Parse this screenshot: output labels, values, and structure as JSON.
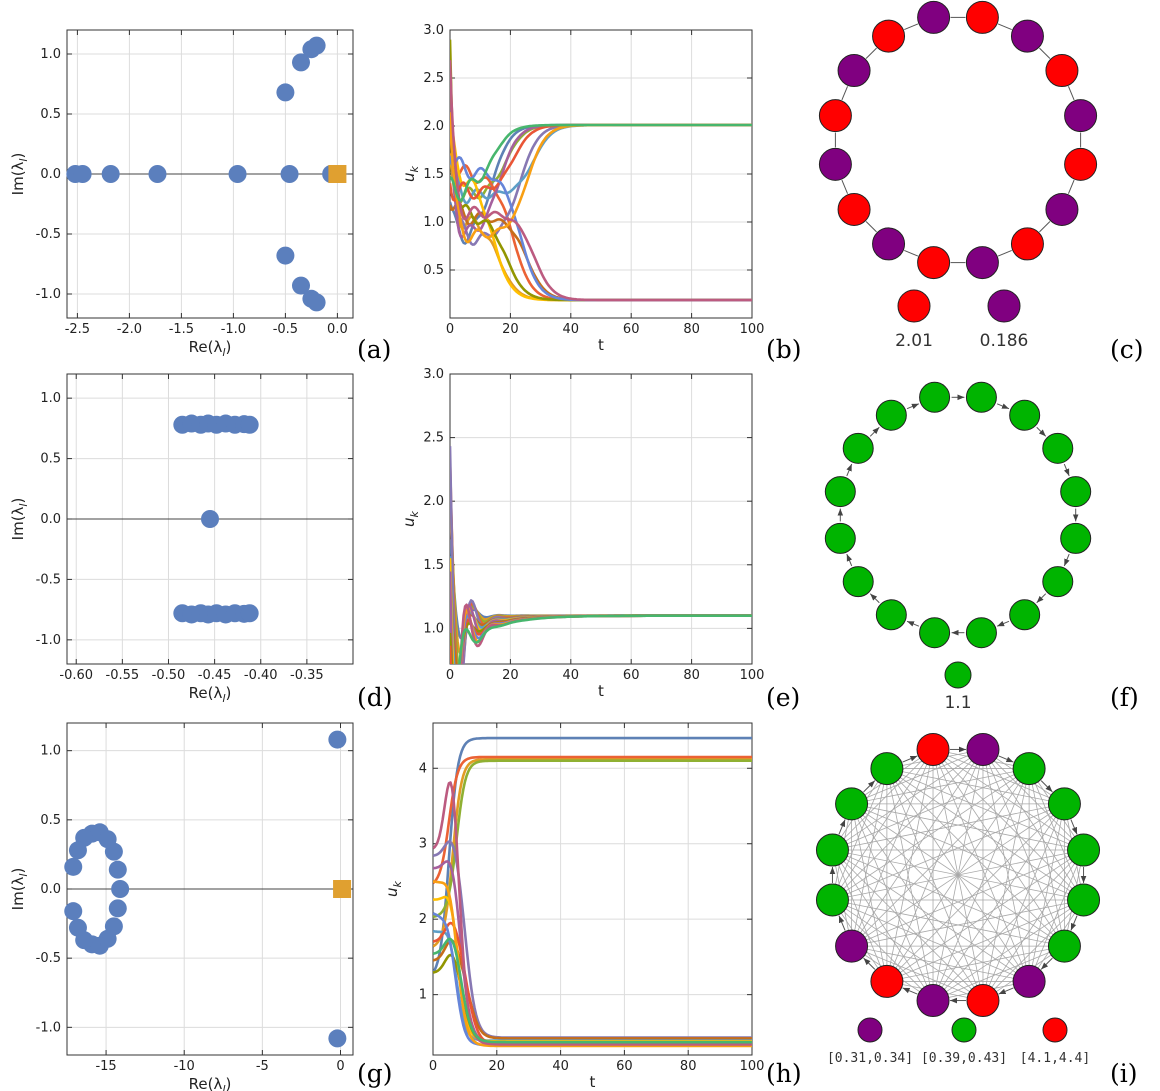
{
  "panel_letters": [
    "(a)",
    "(b)",
    "(c)",
    "(d)",
    "(e)",
    "(f)",
    "(g)",
    "(h)",
    "(i)"
  ],
  "colors": {
    "eig": "#5b7fbd",
    "eig_orange": "#e0a030",
    "red": "#ff0000",
    "purple": "#800080",
    "green": "#00b400",
    "series": [
      "#5e81b5",
      "#e19c24",
      "#8fb032",
      "#eb6235",
      "#8778b3",
      "#c56e1a",
      "#5d9ec7",
      "#ffbf00",
      "#a5609d",
      "#929600",
      "#e95536",
      "#6685d9",
      "#f89f13",
      "#bc5b80",
      "#47b66d"
    ]
  },
  "chart_data": [
    {
      "id": "a",
      "type": "scatter",
      "xlabel": "Re(λl)",
      "ylabel": "Im(λl)",
      "xlim": [
        -2.6,
        0.15
      ],
      "ylim": [
        -1.2,
        1.2
      ],
      "xticks": [
        "-2.5",
        "-2.0",
        "-1.5",
        "-1.0",
        "-0.5",
        "0.0"
      ],
      "yticks": [
        "-1.0",
        "-0.5",
        "0.0",
        "0.5",
        "1.0"
      ],
      "points": [
        [
          -2.52,
          0
        ],
        [
          -2.45,
          0
        ],
        [
          -2.18,
          0
        ],
        [
          -1.73,
          0
        ],
        [
          -0.96,
          0
        ],
        [
          -0.46,
          0
        ],
        [
          -0.06,
          0
        ],
        [
          -0.5,
          0.68
        ],
        [
          -0.35,
          0.93
        ],
        [
          -0.25,
          1.04
        ],
        [
          -0.2,
          1.07
        ],
        [
          -0.5,
          -0.68
        ],
        [
          -0.35,
          -0.93
        ],
        [
          -0.25,
          -1.04
        ],
        [
          -0.2,
          -1.07
        ]
      ],
      "square_points": [
        [
          0.0,
          0
        ]
      ]
    },
    {
      "id": "b",
      "type": "line",
      "xlabel": "t",
      "ylabel": "uk",
      "xlim": [
        0,
        100
      ],
      "ylim": [
        0,
        3.0
      ],
      "xticks": [
        "0",
        "20",
        "40",
        "60",
        "80",
        "100"
      ],
      "yticks": [
        "0.5",
        "1.0",
        "1.5",
        "2.0",
        "2.5",
        "3.0"
      ],
      "steady_values": [
        2.01,
        0.186
      ]
    },
    {
      "id": "c",
      "type": "network",
      "nodes": [
        "purple",
        "red",
        "purple",
        "red",
        "purple",
        "red",
        "purple",
        "red",
        "purple",
        "red",
        "purple",
        "red",
        "purple",
        "red",
        "purple",
        "red"
      ],
      "legend": [
        {
          "color": "red",
          "label": "2.01"
        },
        {
          "color": "purple",
          "label": "0.186"
        }
      ]
    },
    {
      "id": "d",
      "type": "scatter",
      "xlabel": "Re(λl)",
      "ylabel": "Im(λl)",
      "xlim": [
        -0.61,
        -0.3
      ],
      "ylim": [
        -1.2,
        1.2
      ],
      "xticks": [
        "-0.60",
        "-0.55",
        "-0.50",
        "-0.45",
        "-0.40",
        "-0.35"
      ],
      "yticks": [
        "-1.0",
        "-0.5",
        "0.0",
        "0.5",
        "1.0"
      ],
      "points": [
        [
          -0.485,
          0.78
        ],
        [
          -0.475,
          0.79
        ],
        [
          -0.465,
          0.78
        ],
        [
          -0.457,
          0.79
        ],
        [
          -0.448,
          0.78
        ],
        [
          -0.438,
          0.79
        ],
        [
          -0.428,
          0.78
        ],
        [
          -0.418,
          0.785
        ],
        [
          -0.412,
          0.78
        ],
        [
          -0.485,
          -0.78
        ],
        [
          -0.475,
          -0.79
        ],
        [
          -0.465,
          -0.78
        ],
        [
          -0.457,
          -0.79
        ],
        [
          -0.448,
          -0.78
        ],
        [
          -0.438,
          -0.79
        ],
        [
          -0.428,
          -0.78
        ],
        [
          -0.418,
          -0.785
        ],
        [
          -0.412,
          -0.78
        ],
        [
          -0.455,
          0.0
        ]
      ]
    },
    {
      "id": "e",
      "type": "line",
      "xlabel": "t",
      "ylabel": "uk",
      "xlim": [
        0,
        100
      ],
      "ylim": [
        0.72,
        3.0
      ],
      "xticks": [
        "0",
        "20",
        "40",
        "60",
        "80",
        "100"
      ],
      "yticks": [
        "1.0",
        "1.5",
        "2.0",
        "2.5",
        "3.0"
      ],
      "steady_values": [
        1.1
      ]
    },
    {
      "id": "f",
      "type": "network",
      "nodes": [
        "green",
        "green",
        "green",
        "green",
        "green",
        "green",
        "green",
        "green",
        "green",
        "green",
        "green",
        "green",
        "green",
        "green",
        "green",
        "green"
      ],
      "legend": [
        {
          "color": "green",
          "label": "1.1"
        }
      ]
    },
    {
      "id": "g",
      "type": "scatter",
      "xlabel": "Re(λl)",
      "ylabel": "Im(λl)",
      "xlim": [
        -17.5,
        0.8
      ],
      "ylim": [
        -1.2,
        1.2
      ],
      "xticks": [
        "-15",
        "-10",
        "-5",
        "0"
      ],
      "yticks": [
        "-1.0",
        "-0.5",
        "0.0",
        "0.5",
        "1.0"
      ],
      "points": [
        [
          -14.1,
          0
        ],
        [
          -14.25,
          0.14
        ],
        [
          -14.25,
          -0.14
        ],
        [
          -14.5,
          0.27
        ],
        [
          -14.5,
          -0.27
        ],
        [
          -14.9,
          0.36
        ],
        [
          -14.9,
          -0.36
        ],
        [
          -15.4,
          0.41
        ],
        [
          -15.4,
          -0.41
        ],
        [
          -15.9,
          0.4
        ],
        [
          -15.9,
          -0.4
        ],
        [
          -16.4,
          0.37
        ],
        [
          -16.4,
          -0.37
        ],
        [
          -16.8,
          0.28
        ],
        [
          -16.8,
          -0.28
        ],
        [
          -17.1,
          0.16
        ],
        [
          -17.1,
          -0.16
        ],
        [
          -0.2,
          1.08
        ],
        [
          -0.2,
          -1.08
        ]
      ],
      "square_points": [
        [
          0.1,
          0
        ]
      ]
    },
    {
      "id": "h",
      "type": "line",
      "xlabel": "t",
      "ylabel": "uk",
      "xlim": [
        0,
        100
      ],
      "ylim": [
        0.2,
        4.6
      ],
      "xticks": [
        "0",
        "20",
        "40",
        "60",
        "80",
        "100"
      ],
      "yticks": [
        "1",
        "2",
        "3",
        "4"
      ],
      "steady_values": [
        4.4,
        4.1,
        0.43,
        0.39,
        0.34
      ]
    },
    {
      "id": "i",
      "type": "network",
      "nodes": [
        "red",
        "purple",
        "green",
        "green",
        "green",
        "green",
        "green",
        "purple",
        "red",
        "purple",
        "red",
        "purple",
        "green",
        "green",
        "green",
        "green"
      ],
      "legend": [
        {
          "color": "purple",
          "label": "[0.31,0.34]"
        },
        {
          "color": "green",
          "label": "[0.39,0.43]"
        },
        {
          "color": "red",
          "label": "[4.1,4.4]"
        }
      ]
    }
  ]
}
